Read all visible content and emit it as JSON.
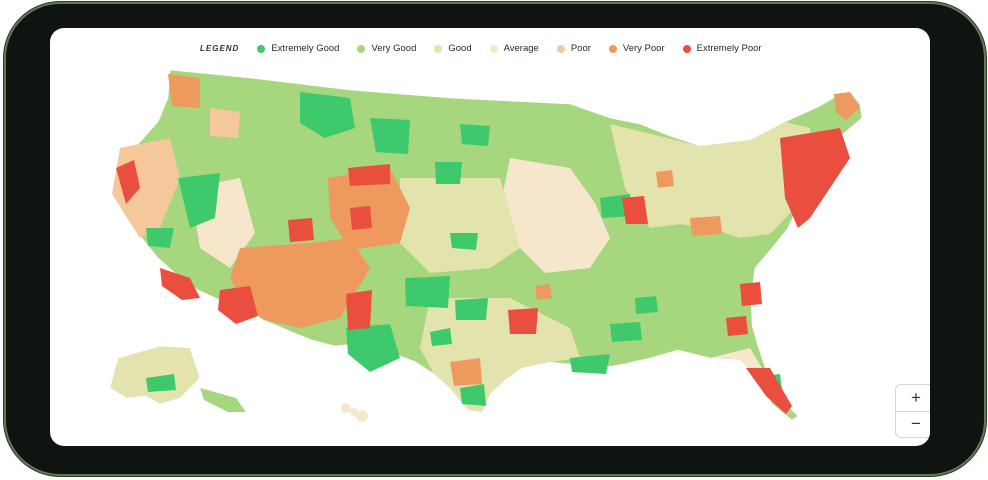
{
  "legend": {
    "title": "LEGEND",
    "items": [
      {
        "label": "Extremely Good",
        "color": "#3ec96d"
      },
      {
        "label": "Very Good",
        "color": "#a6d67e"
      },
      {
        "label": "Good",
        "color": "#e3e3ad"
      },
      {
        "label": "Average",
        "color": "#f6e6cc"
      },
      {
        "label": "Poor",
        "color": "#f4c89a"
      },
      {
        "label": "Very Poor",
        "color": "#ee9a5f"
      },
      {
        "label": "Extremely Poor",
        "color": "#ea4e3e"
      }
    ]
  },
  "map": {
    "device_frame_color": "#0f1410",
    "device_edge_color": "#5f7a55",
    "background_color": "#ffffff"
  },
  "zoom": {
    "in_label": "+",
    "out_label": "−"
  }
}
